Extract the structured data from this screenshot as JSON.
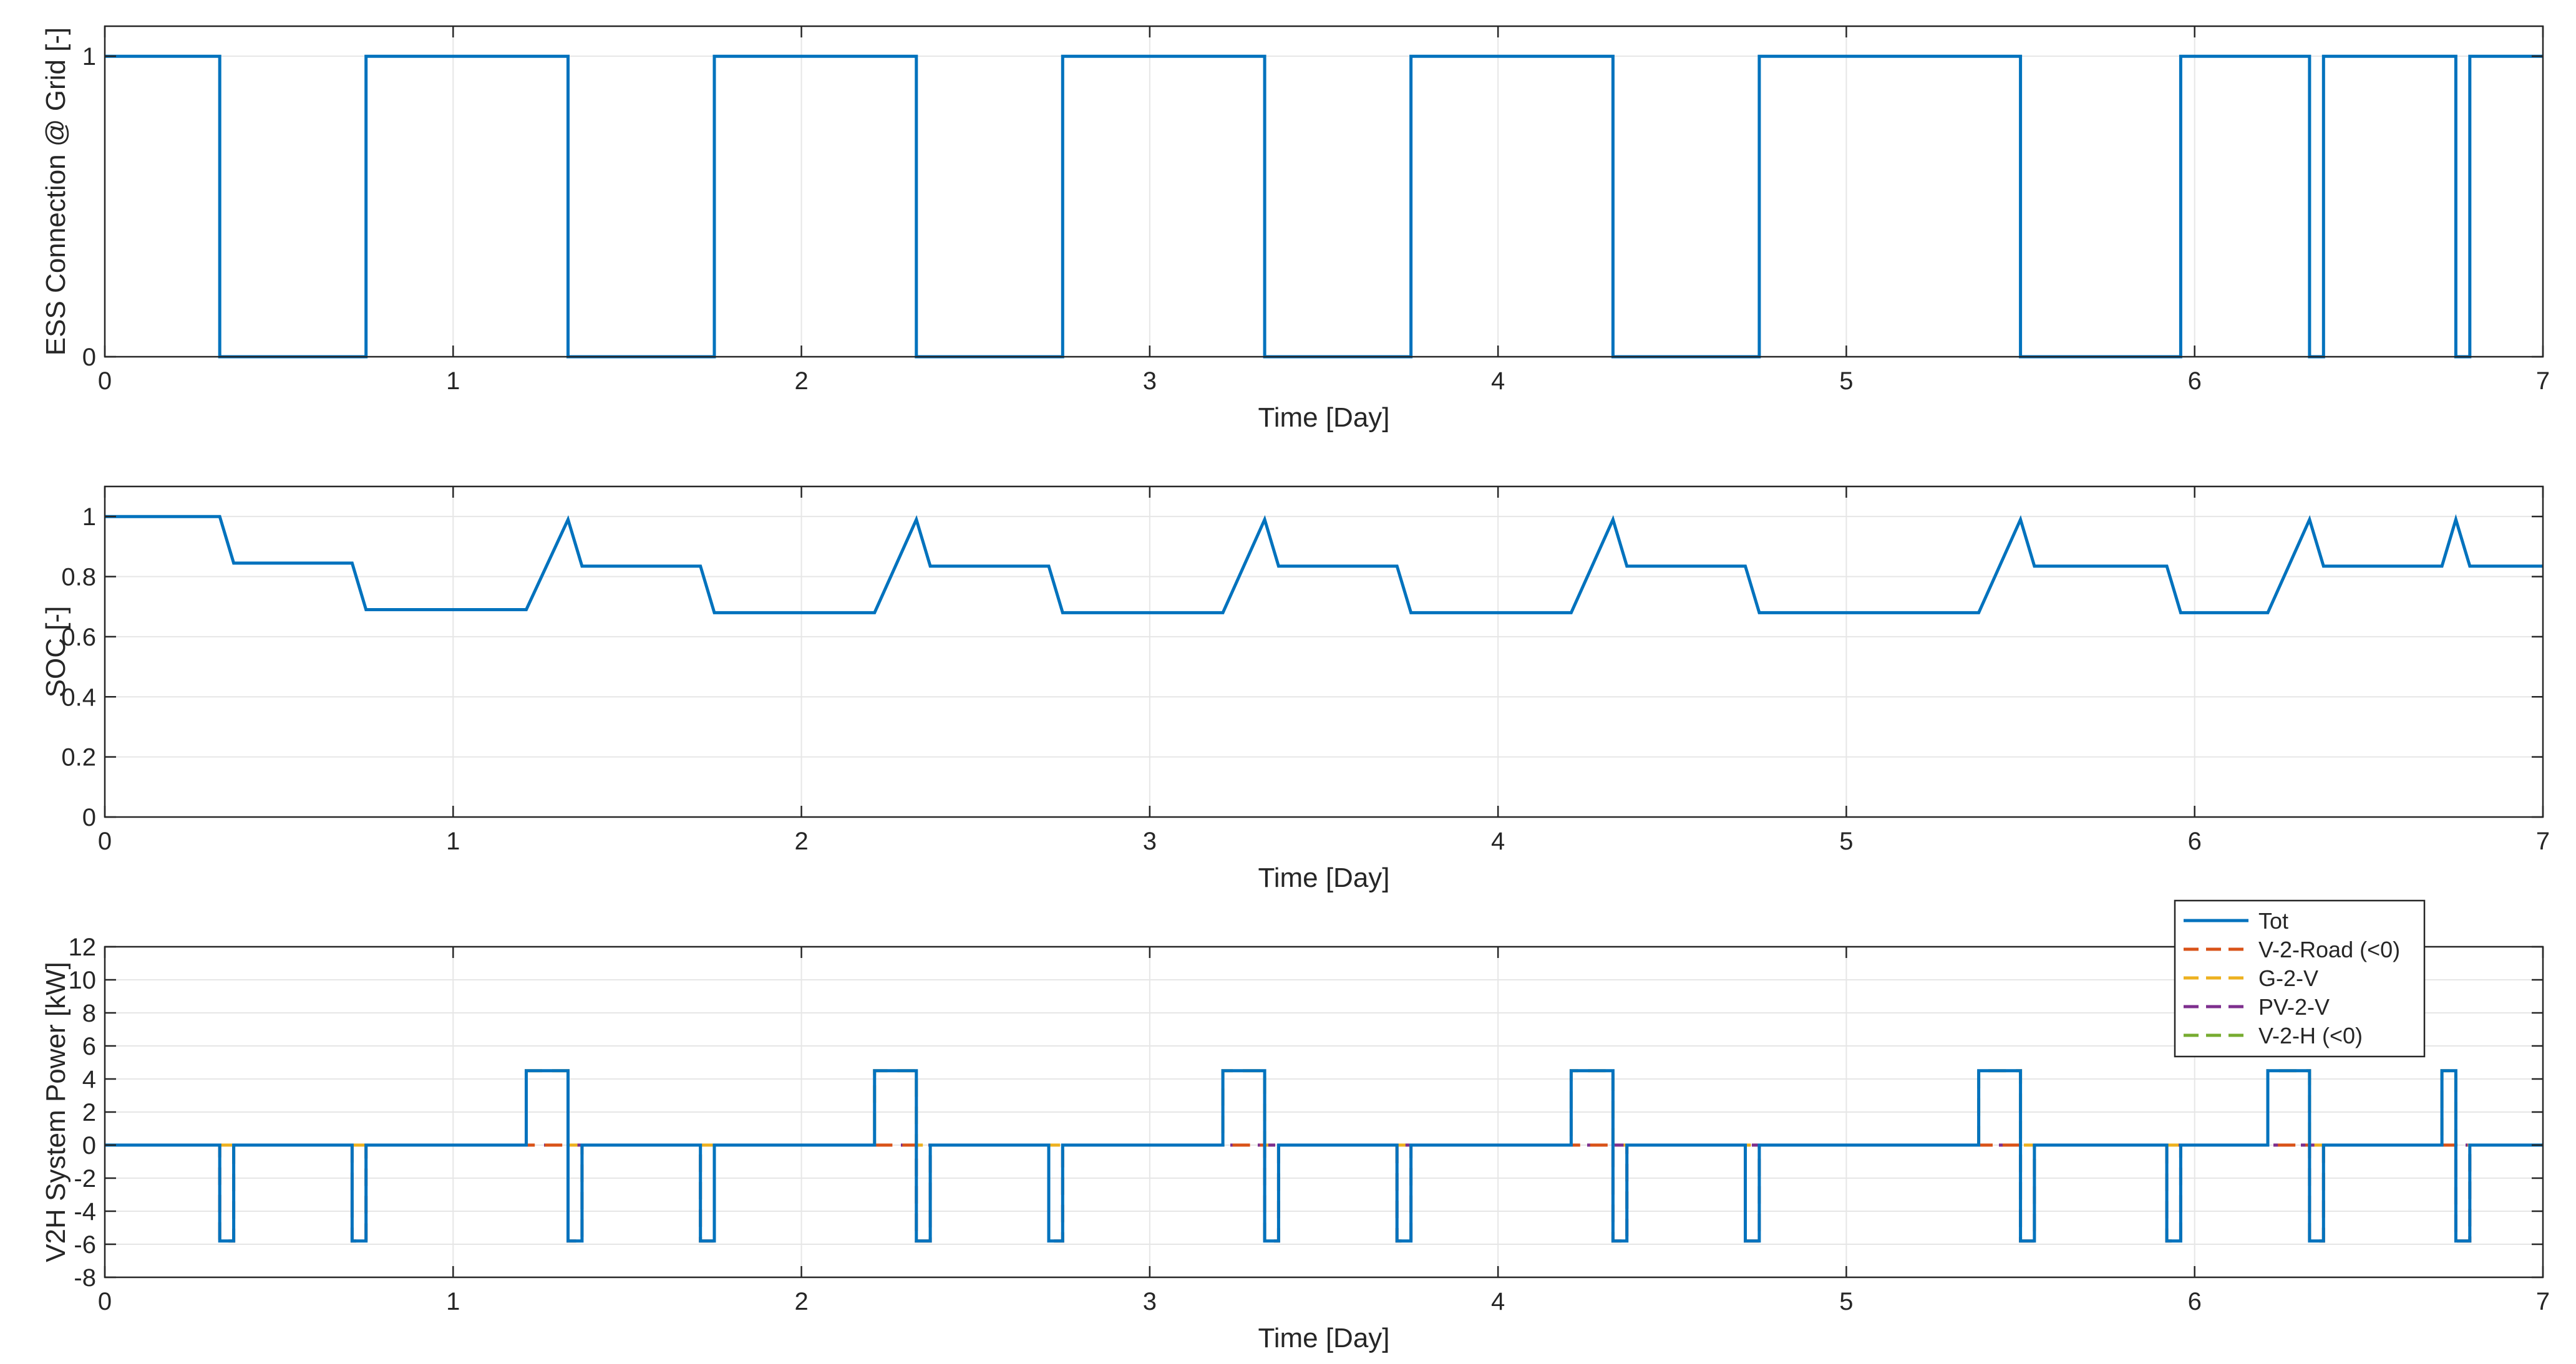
{
  "chart_data": [
    {
      "type": "line",
      "xlabel": "Time [Day]",
      "ylabel": "ESS Connection @ Grid [-]",
      "xlim": [
        0,
        7
      ],
      "ylim": [
        0,
        1.1
      ],
      "xticks": [
        "0",
        "1",
        "2",
        "3",
        "4",
        "5",
        "6",
        "7"
      ],
      "yticks": [
        "0",
        "1"
      ],
      "grid": true,
      "series": [
        {
          "color": "#0072BD",
          "style": "solid",
          "points": [
            [
              0,
              1
            ],
            [
              0.33,
              1
            ],
            [
              0.33,
              0
            ],
            [
              0.75,
              0
            ],
            [
              0.75,
              1
            ],
            [
              1.33,
              1
            ],
            [
              1.33,
              0
            ],
            [
              1.75,
              0
            ],
            [
              1.75,
              1
            ],
            [
              2.33,
              1
            ],
            [
              2.33,
              0
            ],
            [
              2.75,
              0
            ],
            [
              2.75,
              1
            ],
            [
              3.33,
              1
            ],
            [
              3.33,
              0
            ],
            [
              3.75,
              0
            ],
            [
              3.75,
              1
            ],
            [
              4.33,
              1
            ],
            [
              4.33,
              0
            ],
            [
              4.75,
              0
            ],
            [
              4.75,
              1
            ],
            [
              5.5,
              1
            ],
            [
              5.5,
              0
            ],
            [
              5.96,
              0
            ],
            [
              5.96,
              1
            ],
            [
              6.33,
              1
            ],
            [
              6.33,
              0
            ],
            [
              6.37,
              0
            ],
            [
              6.37,
              1
            ],
            [
              6.75,
              1
            ],
            [
              6.75,
              0
            ],
            [
              6.79,
              0
            ],
            [
              6.79,
              1
            ],
            [
              7,
              1
            ]
          ]
        }
      ]
    },
    {
      "type": "line",
      "xlabel": "Time [Day]",
      "ylabel": "SOC [-]",
      "xlim": [
        0,
        7
      ],
      "ylim": [
        0,
        1.1
      ],
      "xticks": [
        "0",
        "1",
        "2",
        "3",
        "4",
        "5",
        "6",
        "7"
      ],
      "yticks": [
        "0",
        "0.2",
        "0.4",
        "0.6",
        "0.8",
        "1"
      ],
      "grid": true,
      "series": [
        {
          "color": "#0072BD",
          "style": "solid",
          "points": [
            [
              0,
              1
            ],
            [
              0.33,
              1
            ],
            [
              0.37,
              0.845
            ],
            [
              0.71,
              0.845
            ],
            [
              0.75,
              0.69
            ],
            [
              1.21,
              0.69
            ],
            [
              1.33,
              0.99
            ],
            [
              1.37,
              0.835
            ],
            [
              1.71,
              0.835
            ],
            [
              1.75,
              0.68
            ],
            [
              2.21,
              0.68
            ],
            [
              2.33,
              0.99
            ],
            [
              2.37,
              0.835
            ],
            [
              2.71,
              0.835
            ],
            [
              2.75,
              0.68
            ],
            [
              3.21,
              0.68
            ],
            [
              3.33,
              0.99
            ],
            [
              3.37,
              0.835
            ],
            [
              3.71,
              0.835
            ],
            [
              3.75,
              0.68
            ],
            [
              4.21,
              0.68
            ],
            [
              4.33,
              0.99
            ],
            [
              4.37,
              0.835
            ],
            [
              4.71,
              0.835
            ],
            [
              4.75,
              0.68
            ],
            [
              5.38,
              0.68
            ],
            [
              5.5,
              0.99
            ],
            [
              5.54,
              0.835
            ],
            [
              5.92,
              0.835
            ],
            [
              5.96,
              0.68
            ],
            [
              6.21,
              0.68
            ],
            [
              6.33,
              0.99
            ],
            [
              6.37,
              0.835
            ],
            [
              6.71,
              0.835
            ],
            [
              6.75,
              0.99
            ],
            [
              6.79,
              0.835
            ],
            [
              7,
              0.835
            ]
          ]
        }
      ]
    },
    {
      "type": "line",
      "xlabel": "Time [Day]",
      "ylabel": "V2H System Power [kW]",
      "xlim": [
        0,
        7
      ],
      "ylim": [
        -8,
        12
      ],
      "xticks": [
        "0",
        "1",
        "2",
        "3",
        "4",
        "5",
        "6",
        "7"
      ],
      "yticks": [
        "-8",
        "-6",
        "-4",
        "-2",
        "0",
        "2",
        "4",
        "6",
        "8",
        "10",
        "12"
      ],
      "grid": true,
      "legend": {
        "position": "top-right",
        "entries": [
          "Tot",
          "V-2-Road (<0)",
          "G-2-V",
          "PV-2-V",
          "V-2-H (<0)"
        ]
      },
      "series": [
        {
          "name": "Tot",
          "color": "#0072BD",
          "style": "solid",
          "points": [
            [
              0,
              0
            ],
            [
              0.33,
              0
            ],
            [
              0.33,
              -5.8
            ],
            [
              0.37,
              -5.8
            ],
            [
              0.37,
              0
            ],
            [
              0.71,
              0
            ],
            [
              0.71,
              -5.8
            ],
            [
              0.75,
              -5.8
            ],
            [
              0.75,
              0
            ],
            [
              1.21,
              0
            ],
            [
              1.21,
              4.5
            ],
            [
              1.33,
              4.5
            ],
            [
              1.33,
              -5.8
            ],
            [
              1.37,
              -5.8
            ],
            [
              1.37,
              0
            ],
            [
              1.71,
              0
            ],
            [
              1.71,
              -5.8
            ],
            [
              1.75,
              -5.8
            ],
            [
              1.75,
              0
            ],
            [
              2.21,
              0
            ],
            [
              2.21,
              4.5
            ],
            [
              2.33,
              4.5
            ],
            [
              2.33,
              -5.8
            ],
            [
              2.37,
              -5.8
            ],
            [
              2.37,
              0
            ],
            [
              2.71,
              0
            ],
            [
              2.71,
              -5.8
            ],
            [
              2.75,
              -5.8
            ],
            [
              2.75,
              0
            ],
            [
              3.21,
              0
            ],
            [
              3.21,
              4.5
            ],
            [
              3.33,
              4.5
            ],
            [
              3.33,
              -5.8
            ],
            [
              3.37,
              -5.8
            ],
            [
              3.37,
              0
            ],
            [
              3.71,
              0
            ],
            [
              3.71,
              -5.8
            ],
            [
              3.75,
              -5.8
            ],
            [
              3.75,
              0
            ],
            [
              4.21,
              0
            ],
            [
              4.21,
              4.5
            ],
            [
              4.33,
              4.5
            ],
            [
              4.33,
              -5.8
            ],
            [
              4.37,
              -5.8
            ],
            [
              4.37,
              0
            ],
            [
              4.71,
              0
            ],
            [
              4.71,
              -5.8
            ],
            [
              4.75,
              -5.8
            ],
            [
              4.75,
              0
            ],
            [
              5.38,
              0
            ],
            [
              5.38,
              4.5
            ],
            [
              5.5,
              4.5
            ],
            [
              5.5,
              -5.8
            ],
            [
              5.54,
              -5.8
            ],
            [
              5.54,
              0
            ],
            [
              5.92,
              0
            ],
            [
              5.92,
              -5.8
            ],
            [
              5.96,
              -5.8
            ],
            [
              5.96,
              0
            ],
            [
              6.21,
              0
            ],
            [
              6.21,
              4.5
            ],
            [
              6.33,
              4.5
            ],
            [
              6.33,
              -5.8
            ],
            [
              6.37,
              -5.8
            ],
            [
              6.37,
              0
            ],
            [
              6.71,
              0
            ],
            [
              6.71,
              4.5
            ],
            [
              6.75,
              4.5
            ],
            [
              6.75,
              -5.8
            ],
            [
              6.79,
              -5.8
            ],
            [
              6.79,
              0
            ],
            [
              7,
              0
            ]
          ]
        },
        {
          "name": "V-2-Road (<0)",
          "color": "#D95319",
          "style": "dashed",
          "points": [
            [
              0,
              0
            ],
            [
              0.33,
              0
            ],
            [
              0.33,
              -5.8
            ],
            [
              0.37,
              -5.8
            ],
            [
              0.37,
              0
            ],
            [
              0.71,
              0
            ],
            [
              0.71,
              -5.8
            ],
            [
              0.75,
              -5.8
            ],
            [
              0.75,
              0
            ],
            [
              1.33,
              0
            ],
            [
              1.33,
              -5.8
            ],
            [
              1.37,
              -5.8
            ],
            [
              1.37,
              0
            ],
            [
              1.71,
              0
            ],
            [
              1.71,
              -5.8
            ],
            [
              1.75,
              -5.8
            ],
            [
              1.75,
              0
            ],
            [
              2.33,
              0
            ],
            [
              2.33,
              -5.8
            ],
            [
              2.37,
              -5.8
            ],
            [
              2.37,
              0
            ],
            [
              2.71,
              0
            ],
            [
              2.71,
              -5.8
            ],
            [
              2.75,
              -5.8
            ],
            [
              2.75,
              0
            ],
            [
              3.33,
              0
            ],
            [
              3.33,
              -5.8
            ],
            [
              3.37,
              -5.8
            ],
            [
              3.37,
              0
            ],
            [
              3.71,
              0
            ],
            [
              3.71,
              -5.8
            ],
            [
              3.75,
              -5.8
            ],
            [
              3.75,
              0
            ],
            [
              4.33,
              0
            ],
            [
              4.33,
              -5.8
            ],
            [
              4.37,
              -5.8
            ],
            [
              4.37,
              0
            ],
            [
              4.71,
              0
            ],
            [
              4.71,
              -5.8
            ],
            [
              4.75,
              -5.8
            ],
            [
              4.75,
              0
            ],
            [
              5.5,
              0
            ],
            [
              5.5,
              -5.8
            ],
            [
              5.54,
              -5.8
            ],
            [
              5.54,
              0
            ],
            [
              5.92,
              0
            ],
            [
              5.92,
              -5.8
            ],
            [
              5.96,
              -5.8
            ],
            [
              5.96,
              0
            ],
            [
              6.33,
              0
            ],
            [
              6.33,
              -5.8
            ],
            [
              6.37,
              -5.8
            ],
            [
              6.37,
              0
            ],
            [
              6.75,
              0
            ],
            [
              6.75,
              -5.8
            ],
            [
              6.79,
              -5.8
            ],
            [
              6.79,
              0
            ],
            [
              7,
              0
            ]
          ]
        },
        {
          "name": "G-2-V",
          "color": "#EDB120",
          "style": "dashed",
          "points": [
            [
              0,
              0
            ],
            [
              1.21,
              0
            ],
            [
              1.21,
              4.5
            ],
            [
              1.33,
              4.5
            ],
            [
              1.33,
              0
            ],
            [
              2.21,
              0
            ],
            [
              2.21,
              4.5
            ],
            [
              2.33,
              4.5
            ],
            [
              2.33,
              0
            ],
            [
              3.21,
              0
            ],
            [
              3.21,
              4.5
            ],
            [
              3.33,
              4.5
            ],
            [
              3.33,
              0
            ],
            [
              4.21,
              0
            ],
            [
              4.21,
              4.5
            ],
            [
              4.33,
              4.5
            ],
            [
              4.33,
              0
            ],
            [
              5.38,
              0
            ],
            [
              5.38,
              4.5
            ],
            [
              5.5,
              4.5
            ],
            [
              5.5,
              0
            ],
            [
              6.21,
              0
            ],
            [
              6.21,
              4.5
            ],
            [
              6.33,
              4.5
            ],
            [
              6.33,
              0
            ],
            [
              6.71,
              0
            ],
            [
              6.71,
              4.5
            ],
            [
              6.75,
              4.5
            ],
            [
              6.75,
              0
            ],
            [
              7,
              0
            ]
          ]
        },
        {
          "name": "PV-2-V",
          "color": "#7E2F8E",
          "style": "dashed",
          "points": [
            [
              0,
              0
            ],
            [
              7,
              0
            ]
          ]
        },
        {
          "name": "V-2-H (<0)",
          "color": "#77AC30",
          "style": "dashed",
          "points": [
            [
              0,
              0
            ],
            [
              7,
              0
            ]
          ]
        }
      ]
    }
  ]
}
